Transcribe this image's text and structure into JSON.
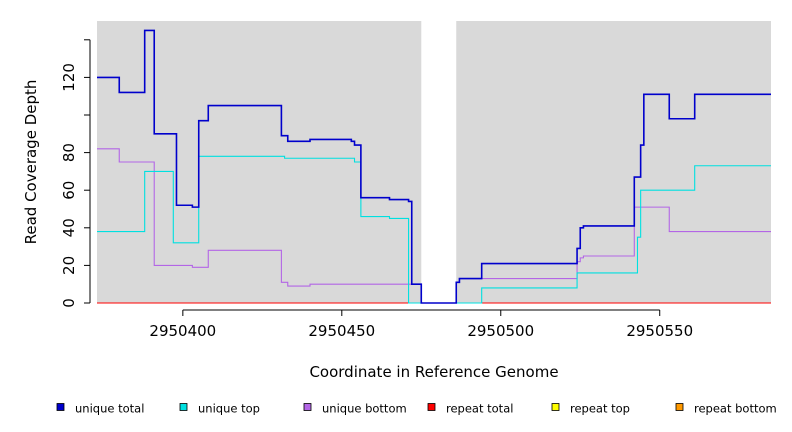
{
  "chart_data": {
    "type": "line",
    "step": true,
    "title": "",
    "xlabel": "Coordinate in Reference Genome",
    "ylabel": "Read Coverage Depth",
    "xlim": [
      2950373,
      2950585
    ],
    "ylim": [
      0,
      150
    ],
    "x_ticks": [
      2950400,
      2950450,
      2950500,
      2950550
    ],
    "x_tick_labels": [
      "2950400",
      "2950450",
      "2950500",
      "2950550"
    ],
    "y_ticks": [
      0,
      20,
      40,
      60,
      80,
      120
    ],
    "y_tick_labels": [
      "0",
      "20",
      "40",
      "60",
      "80",
      "120"
    ],
    "y_minor_ticks": [
      100,
      140
    ],
    "grid": false,
    "background": "#d9d9d9",
    "gap_region": [
      2950475,
      2950486
    ],
    "legend_position": "bottom",
    "series": [
      {
        "name": "unique total",
        "color": "#0000cc",
        "points": [
          [
            2950373,
            120
          ],
          [
            2950380,
            112
          ],
          [
            2950388,
            145
          ],
          [
            2950391,
            90
          ],
          [
            2950398,
            52
          ],
          [
            2950403,
            51
          ],
          [
            2950405,
            97
          ],
          [
            2950408,
            105
          ],
          [
            2950431,
            89
          ],
          [
            2950433,
            86
          ],
          [
            2950440,
            87
          ],
          [
            2950453,
            86
          ],
          [
            2950454,
            84
          ],
          [
            2950456,
            56
          ],
          [
            2950465,
            55
          ],
          [
            2950471,
            54
          ],
          [
            2950472,
            10
          ],
          [
            2950475,
            0
          ],
          [
            2950486,
            11
          ],
          [
            2950487,
            13
          ],
          [
            2950494,
            21
          ],
          [
            2950524,
            29
          ],
          [
            2950525,
            40
          ],
          [
            2950526,
            41
          ],
          [
            2950542,
            67
          ],
          [
            2950544,
            84
          ],
          [
            2950545,
            111
          ],
          [
            2950553,
            98
          ],
          [
            2950561,
            111
          ],
          [
            2950585,
            111
          ]
        ]
      },
      {
        "name": "unique top",
        "color": "#00e0e0",
        "points": [
          [
            2950373,
            38
          ],
          [
            2950388,
            70
          ],
          [
            2950397,
            32
          ],
          [
            2950405,
            78
          ],
          [
            2950432,
            77
          ],
          [
            2950454,
            75
          ],
          [
            2950456,
            46
          ],
          [
            2950465,
            45
          ],
          [
            2950470,
            45
          ],
          [
            2950471,
            0
          ],
          [
            2950494,
            8
          ],
          [
            2950524,
            16
          ],
          [
            2950543,
            35
          ],
          [
            2950544,
            60
          ],
          [
            2950561,
            73
          ],
          [
            2950585,
            73
          ]
        ]
      },
      {
        "name": "unique bottom",
        "color": "#b366e6",
        "points": [
          [
            2950373,
            82
          ],
          [
            2950380,
            75
          ],
          [
            2950391,
            20
          ],
          [
            2950403,
            19
          ],
          [
            2950408,
            28
          ],
          [
            2950431,
            11
          ],
          [
            2950433,
            9
          ],
          [
            2950440,
            10
          ],
          [
            2950472,
            10
          ],
          [
            2950475,
            0
          ],
          [
            2950486,
            11
          ],
          [
            2950487,
            13
          ],
          [
            2950524,
            22
          ],
          [
            2950525,
            24
          ],
          [
            2950526,
            25
          ],
          [
            2950542,
            51
          ],
          [
            2950553,
            38
          ],
          [
            2950585,
            38
          ]
        ]
      },
      {
        "name": "repeat total",
        "color": "#ff0000",
        "points": [
          [
            2950373,
            0
          ],
          [
            2950585,
            0
          ]
        ]
      },
      {
        "name": "repeat top",
        "color": "#ffff00",
        "points": [
          [
            2950373,
            0
          ],
          [
            2950585,
            0
          ]
        ]
      },
      {
        "name": "repeat bottom",
        "color": "#ff9900",
        "points": [
          [
            2950373,
            0
          ],
          [
            2950585,
            0
          ]
        ]
      }
    ]
  }
}
